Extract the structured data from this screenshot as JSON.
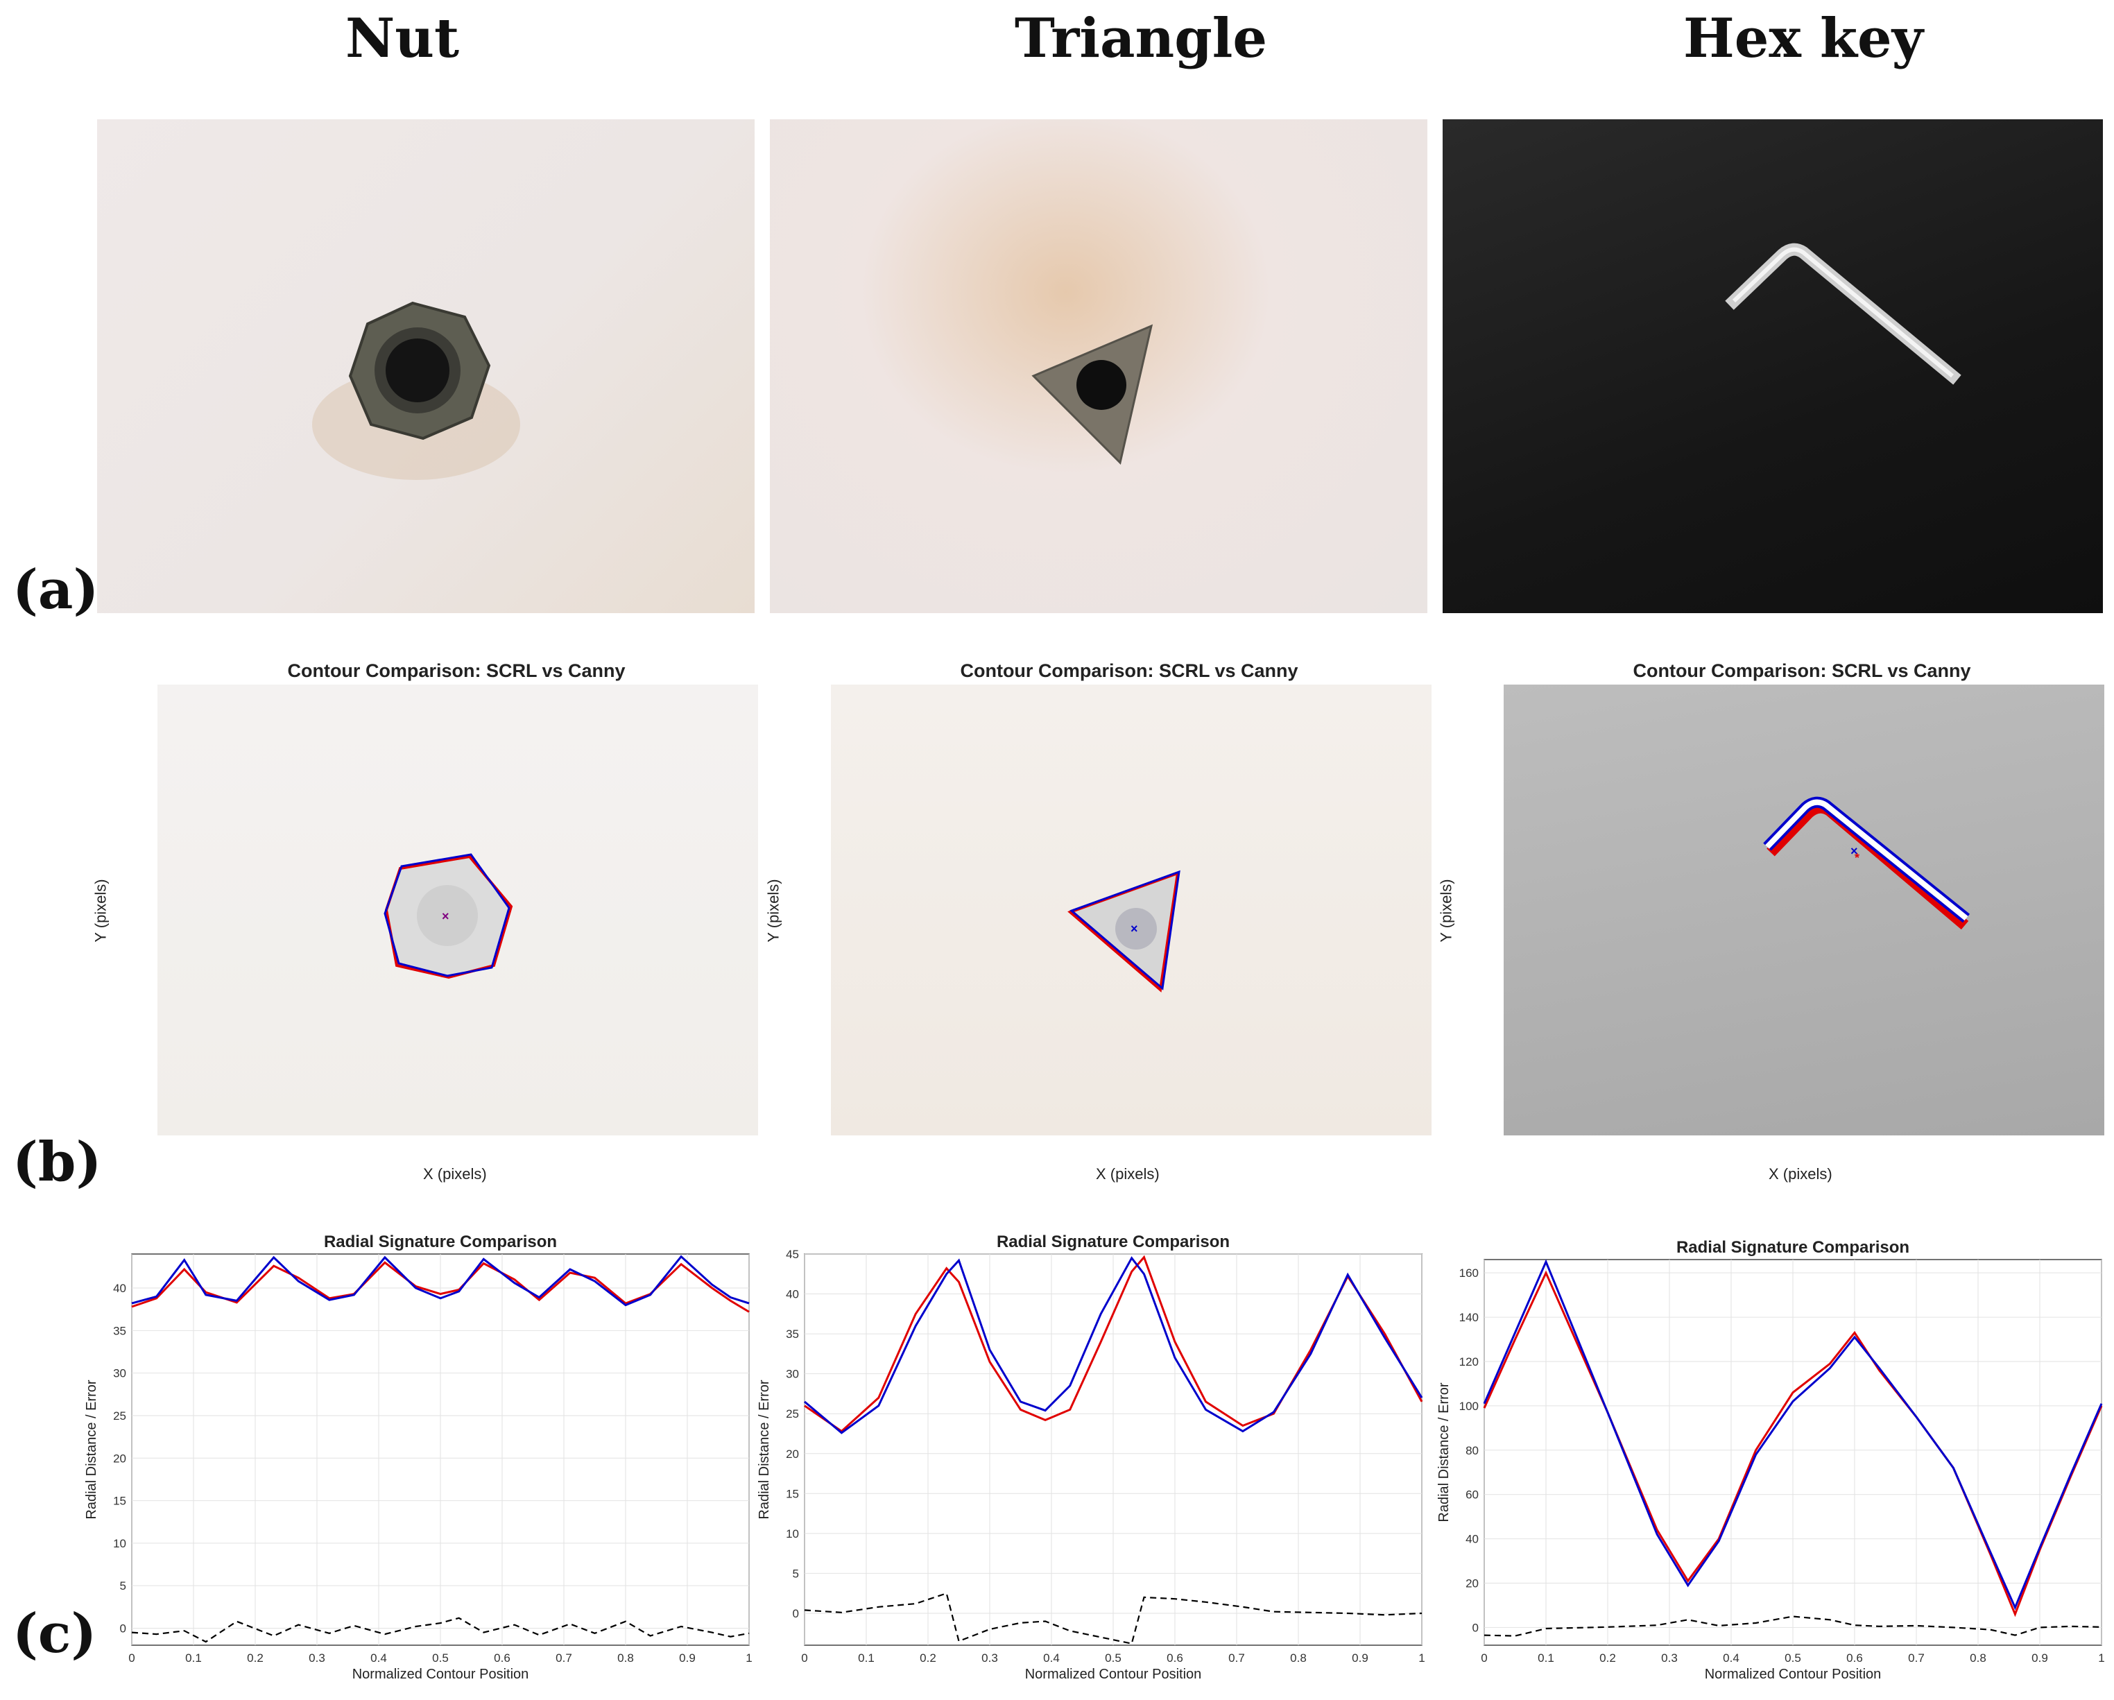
{
  "column_titles": [
    "Nut",
    "Triangle",
    "Hex key"
  ],
  "panel_labels": [
    "(a)",
    "(b)",
    "(c)"
  ],
  "contour_plots": {
    "title": "Contour Comparison: SCRL vs Canny",
    "xlabel": "X (pixels)",
    "ylabel": "Y (pixels)"
  },
  "colors": {
    "red_series": "#e00000",
    "blue_series": "#0000cc",
    "error_series": "#000000"
  },
  "chart_data": [
    {
      "type": "line",
      "title": "Radial Signature Comparison",
      "xlabel": "Normalized Contour Position",
      "ylabel": "Radial Distance / Error",
      "xlim": [
        0,
        1
      ],
      "ylim": [
        -2,
        44
      ],
      "xticks": [
        "0",
        "0.1",
        "0.2",
        "0.3",
        "0.4",
        "0.5",
        "0.6",
        "0.7",
        "0.8",
        "0.9",
        "1"
      ],
      "yticks": [
        "0",
        "5",
        "10",
        "15",
        "20",
        "25",
        "30",
        "35",
        "40"
      ],
      "ytick_values": [
        0,
        5,
        10,
        15,
        20,
        25,
        30,
        35,
        40
      ],
      "grid": true,
      "x": [
        0,
        0.04,
        0.085,
        0.12,
        0.17,
        0.23,
        0.27,
        0.32,
        0.36,
        0.41,
        0.46,
        0.5,
        0.53,
        0.57,
        0.62,
        0.66,
        0.71,
        0.75,
        0.8,
        0.84,
        0.89,
        0.94,
        0.97,
        1
      ],
      "series": [
        {
          "values": [
            37.8,
            38.8,
            42.2,
            39.5,
            38.3,
            42.6,
            41.2,
            38.8,
            39.3,
            43.0,
            40.2,
            39.3,
            39.8,
            42.9,
            41.0,
            38.6,
            41.8,
            41.2,
            38.2,
            39.3,
            42.8,
            40.0,
            38.5,
            37.2
          ]
        },
        {
          "values": [
            38.2,
            39.0,
            43.3,
            39.2,
            38.5,
            43.6,
            40.8,
            38.6,
            39.2,
            43.6,
            40.0,
            38.8,
            39.6,
            43.4,
            40.6,
            38.9,
            42.2,
            40.8,
            38.0,
            39.2,
            43.7,
            40.4,
            38.9,
            38.2
          ]
        },
        {
          "dashed": true,
          "values": [
            -0.5,
            -0.7,
            -0.3,
            -1.6,
            0.8,
            -0.9,
            0.4,
            -0.6,
            0.3,
            -0.7,
            0.2,
            0.6,
            1.2,
            -0.5,
            0.4,
            -0.8,
            0.5,
            -0.6,
            0.8,
            -0.9,
            0.2,
            -0.5,
            -1.0,
            -0.6
          ]
        }
      ]
    },
    {
      "type": "line",
      "title": "Radial Signature Comparison",
      "xlabel": "Normalized Contour Position",
      "ylabel": "Radial Distance / Error",
      "xlim": [
        0,
        1
      ],
      "ylim": [
        -4,
        45
      ],
      "xticks": [
        "0",
        "0.1",
        "0.2",
        "0.3",
        "0.4",
        "0.5",
        "0.6",
        "0.7",
        "0.8",
        "0.9",
        "1"
      ],
      "yticks": [
        "0",
        "5",
        "10",
        "15",
        "20",
        "25",
        "30",
        "35",
        "40",
        "45"
      ],
      "ytick_values": [
        0,
        5,
        10,
        15,
        20,
        25,
        30,
        35,
        40,
        45
      ],
      "grid": true,
      "x": [
        0,
        0.06,
        0.12,
        0.18,
        0.23,
        0.25,
        0.3,
        0.35,
        0.39,
        0.43,
        0.48,
        0.53,
        0.55,
        0.6,
        0.65,
        0.71,
        0.76,
        0.82,
        0.88,
        0.94,
        1
      ],
      "series": [
        {
          "values": [
            26.0,
            22.8,
            27.0,
            37.5,
            43.2,
            41.5,
            31.5,
            25.5,
            24.2,
            25.5,
            34.0,
            42.8,
            44.6,
            34.0,
            26.5,
            23.5,
            25.0,
            33.0,
            42.2,
            35.0,
            26.5
          ]
        },
        {
          "values": [
            26.5,
            22.6,
            26.0,
            36.0,
            42.5,
            44.2,
            33.0,
            26.5,
            25.4,
            28.5,
            37.5,
            44.5,
            42.5,
            32.0,
            25.5,
            22.8,
            25.2,
            32.5,
            42.4,
            34.5,
            27.0
          ]
        },
        {
          "dashed": true,
          "values": [
            0.4,
            0.1,
            0.8,
            1.2,
            2.5,
            -3.5,
            -2.0,
            -1.2,
            -1.0,
            -2.2,
            -3.0,
            -3.8,
            2.0,
            1.8,
            1.4,
            0.8,
            0.2,
            0.1,
            0.0,
            -0.2,
            0.0
          ]
        }
      ]
    },
    {
      "type": "line",
      "title": "Radial Signature Comparison",
      "xlabel": "Normalized Contour Position",
      "ylabel": "Radial Distance / Error",
      "xlim": [
        0,
        1
      ],
      "ylim": [
        -8,
        166
      ],
      "xticks": [
        "0",
        "0.1",
        "0.2",
        "0.3",
        "0.4",
        "0.5",
        "0.6",
        "0.7",
        "0.8",
        "0.9",
        "1"
      ],
      "yticks": [
        "0",
        "20",
        "40",
        "60",
        "80",
        "100",
        "120",
        "140",
        "160"
      ],
      "ytick_values": [
        0,
        20,
        40,
        60,
        80,
        100,
        120,
        140,
        160
      ],
      "grid": true,
      "x": [
        0,
        0.05,
        0.1,
        0.2,
        0.28,
        0.33,
        0.38,
        0.44,
        0.5,
        0.56,
        0.6,
        0.64,
        0.7,
        0.76,
        0.82,
        0.86,
        0.9,
        0.95,
        1
      ],
      "series": [
        {
          "values": [
            99,
            130,
            160,
            97,
            44,
            21,
            40,
            80,
            106,
            119,
            133,
            116,
            95,
            72,
            33,
            6,
            35,
            68,
            100
          ]
        },
        {
          "values": [
            101,
            133,
            165,
            97,
            42,
            19,
            39,
            78,
            102,
            117,
            131,
            117,
            95,
            72,
            34,
            9,
            36,
            69,
            101
          ]
        },
        {
          "dashed": true,
          "values": [
            -3.5,
            -3.8,
            -0.5,
            0.2,
            1.0,
            3.5,
            0.8,
            2.0,
            5.0,
            3.5,
            1.0,
            0.5,
            0.8,
            0.0,
            -1.0,
            -3.5,
            0.0,
            0.5,
            0.2
          ]
        }
      ]
    }
  ]
}
